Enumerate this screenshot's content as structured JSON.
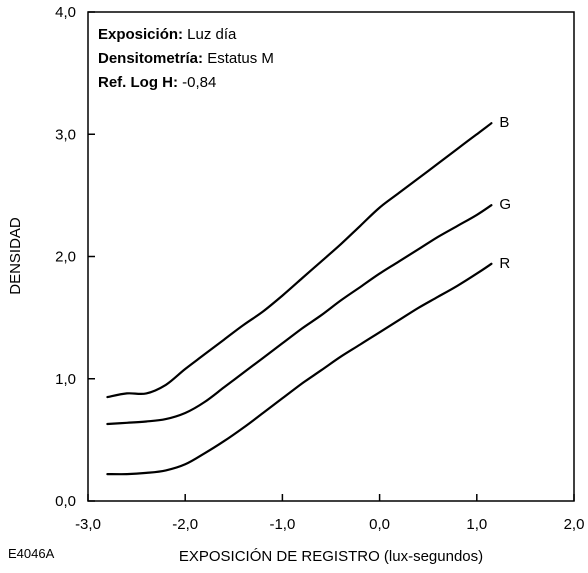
{
  "chart_data": {
    "type": "line",
    "figure_id": "E4046A",
    "xlabel": "EXPOSICIÓN DE REGISTRO (lux-segundos)",
    "ylabel": "DENSIDAD",
    "xlim": [
      -3.0,
      2.0
    ],
    "ylim": [
      0.0,
      4.0
    ],
    "x_ticks": [
      -3.0,
      -2.0,
      -1.0,
      0.0,
      1.0,
      2.0
    ],
    "x_tick_labels": [
      "-3,0",
      "-2,0",
      "-1,0",
      "0,0",
      "1,0",
      "2,0"
    ],
    "y_ticks": [
      0.0,
      1.0,
      2.0,
      3.0,
      4.0
    ],
    "y_tick_labels": [
      "0,0",
      "1,0",
      "2,0",
      "3,0",
      "4,0"
    ],
    "grid": false,
    "info": [
      {
        "key": "Exposición:",
        "value": " Luz día"
      },
      {
        "key": "Densitometría:",
        "value": " Estatus M"
      },
      {
        "key": "Ref. Log H:",
        "value": " -0,84"
      }
    ],
    "series": [
      {
        "name": "B",
        "color": "#000000",
        "points": [
          [
            -2.8,
            0.85
          ],
          [
            -2.6,
            0.88
          ],
          [
            -2.4,
            0.88
          ],
          [
            -2.2,
            0.95
          ],
          [
            -2.0,
            1.08
          ],
          [
            -1.8,
            1.2
          ],
          [
            -1.6,
            1.32
          ],
          [
            -1.4,
            1.44
          ],
          [
            -1.2,
            1.55
          ],
          [
            -1.0,
            1.68
          ],
          [
            -0.8,
            1.82
          ],
          [
            -0.6,
            1.96
          ],
          [
            -0.4,
            2.1
          ],
          [
            -0.2,
            2.25
          ],
          [
            0.0,
            2.4
          ],
          [
            0.2,
            2.52
          ],
          [
            0.4,
            2.64
          ],
          [
            0.6,
            2.76
          ],
          [
            0.8,
            2.88
          ],
          [
            1.0,
            3.0
          ],
          [
            1.15,
            3.09
          ]
        ]
      },
      {
        "name": "G",
        "color": "#000000",
        "points": [
          [
            -2.8,
            0.63
          ],
          [
            -2.6,
            0.64
          ],
          [
            -2.4,
            0.65
          ],
          [
            -2.2,
            0.67
          ],
          [
            -2.0,
            0.72
          ],
          [
            -1.8,
            0.81
          ],
          [
            -1.6,
            0.93
          ],
          [
            -1.4,
            1.05
          ],
          [
            -1.2,
            1.17
          ],
          [
            -1.0,
            1.29
          ],
          [
            -0.8,
            1.41
          ],
          [
            -0.6,
            1.52
          ],
          [
            -0.4,
            1.64
          ],
          [
            -0.2,
            1.75
          ],
          [
            0.0,
            1.86
          ],
          [
            0.2,
            1.96
          ],
          [
            0.4,
            2.06
          ],
          [
            0.6,
            2.16
          ],
          [
            0.8,
            2.25
          ],
          [
            1.0,
            2.34
          ],
          [
            1.15,
            2.42
          ]
        ]
      },
      {
        "name": "R",
        "color": "#000000",
        "points": [
          [
            -2.8,
            0.22
          ],
          [
            -2.6,
            0.22
          ],
          [
            -2.4,
            0.23
          ],
          [
            -2.2,
            0.25
          ],
          [
            -2.0,
            0.3
          ],
          [
            -1.8,
            0.39
          ],
          [
            -1.6,
            0.49
          ],
          [
            -1.4,
            0.6
          ],
          [
            -1.2,
            0.72
          ],
          [
            -1.0,
            0.84
          ],
          [
            -0.8,
            0.96
          ],
          [
            -0.6,
            1.07
          ],
          [
            -0.4,
            1.18
          ],
          [
            -0.2,
            1.28
          ],
          [
            0.0,
            1.38
          ],
          [
            0.2,
            1.48
          ],
          [
            0.4,
            1.58
          ],
          [
            0.6,
            1.67
          ],
          [
            0.8,
            1.76
          ],
          [
            1.0,
            1.86
          ],
          [
            1.15,
            1.94
          ]
        ]
      }
    ]
  }
}
